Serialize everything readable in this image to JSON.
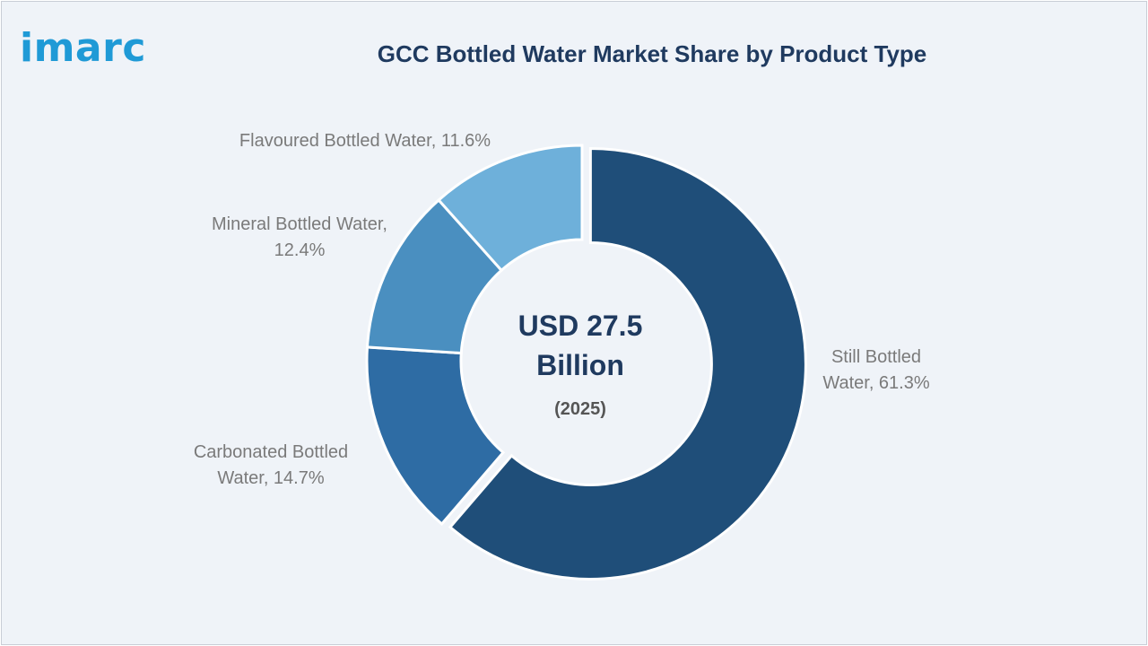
{
  "brand": {
    "logo_text": "imarc",
    "logo_color": "#1f9ad6"
  },
  "chart_data": {
    "type": "pie",
    "title": "GCC Bottled Water Market Share by Product Type",
    "center_label": {
      "value_lines": [
        "USD 27.5",
        "Billion"
      ],
      "year": "(2025)"
    },
    "slices": [
      {
        "name": "Still Bottled Water",
        "value": 61.3,
        "label_lines": [
          "Still Bottled",
          "Water, 61.3%"
        ],
        "color": "#1f4e79"
      },
      {
        "name": "Carbonated Bottled Water",
        "value": 14.7,
        "label_lines": [
          "Carbonated Bottled",
          "Water, 14.7%"
        ],
        "color": "#2e6ca4"
      },
      {
        "name": "Mineral Bottled Water",
        "value": 12.4,
        "label_lines": [
          "Mineral Bottled Water,",
          "12.4%"
        ],
        "color": "#4a8fc0"
      },
      {
        "name": "Flavoured Bottled Water",
        "value": 11.6,
        "label_lines": [
          "Flavoured Bottled Water, 11.6%"
        ],
        "color": "#6eb0da"
      }
    ],
    "donut": true,
    "legend": "none",
    "colors": {
      "title": "#1f3a5f",
      "labels": "#7a7a7a",
      "background": "#eff3f8"
    }
  }
}
